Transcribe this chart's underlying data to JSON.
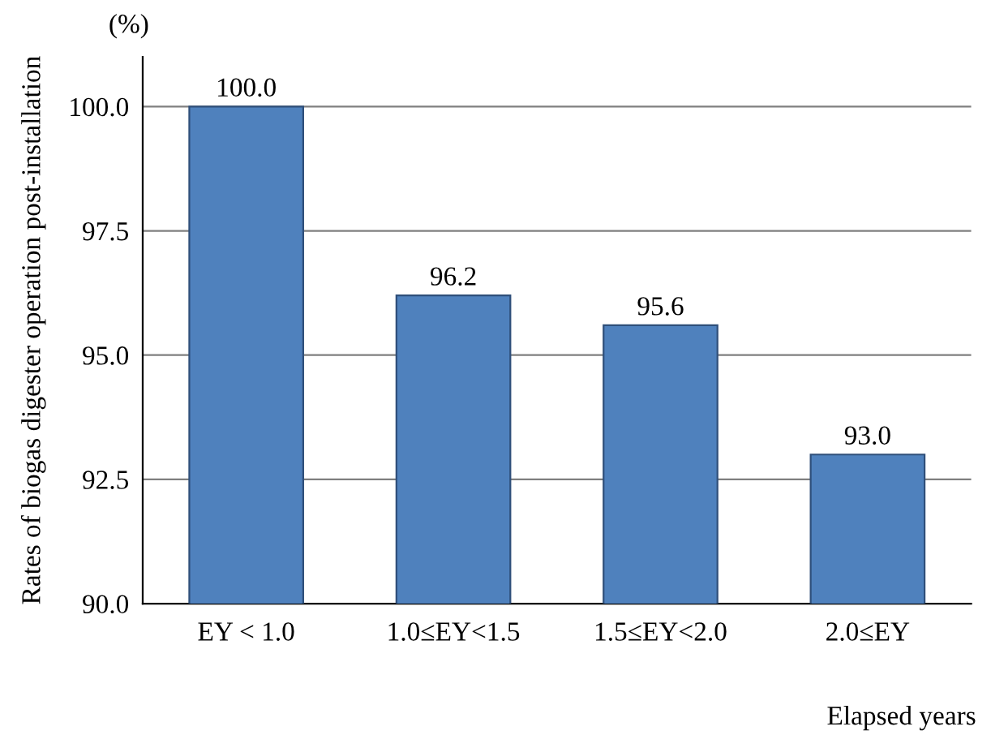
{
  "chart_data": {
    "type": "bar",
    "ylabel": "Rates of biogas digester operation post-installation",
    "xlabel": "Elapsed years",
    "annotations": [
      "(%)"
    ],
    "categories": [
      "EY < 1.0",
      "1.0≤EY<1.5",
      "1.5≤EY<2.0",
      "2.0≤EY"
    ],
    "values": [
      100.0,
      96.2,
      95.6,
      93.0
    ],
    "color": "#4f81bd",
    "value_labels": [
      "100.0",
      "96.2",
      "95.6",
      "93.0"
    ],
    "ylim": [
      90,
      101
    ],
    "yticks": [
      {
        "value": 90,
        "label": "90.0"
      },
      {
        "value": 92.5,
        "label": "92.5"
      },
      {
        "value": 95,
        "label": "95.0"
      },
      {
        "value": 97.5,
        "label": "97.5"
      },
      {
        "value": 100,
        "label": "100.0"
      }
    ],
    "grid": "y",
    "legend": false
  }
}
